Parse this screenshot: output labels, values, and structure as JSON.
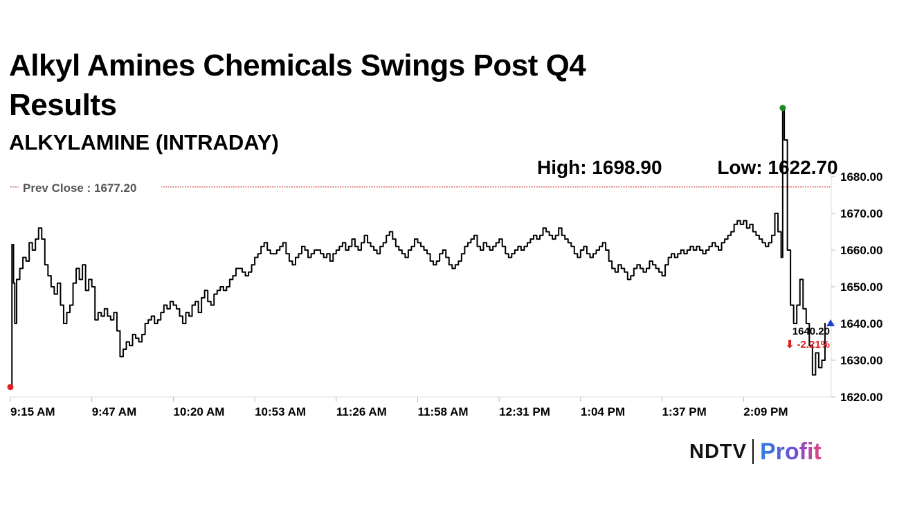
{
  "header": {
    "title": "Alkyl Amines Chemicals Swings Post Q4 Results",
    "subtitle": "ALKYLAMINE (INTRADAY)"
  },
  "stats": {
    "high": "High: 1698.90",
    "low": "Low: 1622.70"
  },
  "branding": {
    "ndtv": "NDTV",
    "profit": "Profit"
  },
  "chart_data": {
    "type": "line",
    "ylim": [
      1620,
      1680
    ],
    "yticks": [
      "1680.00",
      "1670.00",
      "1660.00",
      "1650.00",
      "1640.00",
      "1630.00",
      "1620.00"
    ],
    "x_tick_labels": [
      "9:15 AM",
      "9:47 AM",
      "10:20 AM",
      "10:53 AM",
      "11:26 AM",
      "11:58 AM",
      "12:31 PM",
      "1:04 PM",
      "1:37 PM",
      "2:09 PM"
    ],
    "prev_close": 1677.2,
    "prev_close_label": "Prev Close : 1677.20",
    "last_price": "1640.20",
    "change": "⬇ -2.21%",
    "colors": {
      "line": "#000000",
      "prev_close": "#cc2222",
      "high_marker": "#1f8a1f",
      "low_marker": "#e02020",
      "last_marker": "#1f3fd1",
      "change": "#e02020",
      "axis_text": "#000000",
      "prev_close_text": "#555555"
    },
    "series": [
      {
        "values": [
          [
            0,
            1622.7
          ],
          [
            0.5,
            1661.5
          ],
          [
            1,
            1651
          ],
          [
            1.4,
            1640
          ],
          [
            2,
            1652
          ],
          [
            3,
            1655
          ],
          [
            4,
            1658
          ],
          [
            5,
            1657
          ],
          [
            6,
            1662
          ],
          [
            7,
            1660
          ],
          [
            8,
            1663
          ],
          [
            9,
            1666
          ],
          [
            10,
            1663
          ],
          [
            11,
            1656
          ],
          [
            12,
            1653
          ],
          [
            13,
            1650
          ],
          [
            14,
            1648
          ],
          [
            15,
            1651
          ],
          [
            16,
            1645
          ],
          [
            17,
            1640
          ],
          [
            18,
            1643
          ],
          [
            19,
            1645
          ],
          [
            20,
            1651
          ],
          [
            21,
            1655
          ],
          [
            22,
            1652
          ],
          [
            23,
            1656
          ],
          [
            24,
            1649
          ],
          [
            25,
            1652
          ],
          [
            26,
            1650
          ],
          [
            27,
            1641
          ],
          [
            28,
            1643
          ],
          [
            29,
            1642
          ],
          [
            30,
            1644
          ],
          [
            31,
            1642
          ],
          [
            32,
            1641
          ],
          [
            33,
            1643
          ],
          [
            34,
            1638
          ],
          [
            35,
            1631
          ],
          [
            36,
            1633
          ],
          [
            37,
            1635
          ],
          [
            38,
            1634
          ],
          [
            39,
            1637
          ],
          [
            40,
            1636
          ],
          [
            41,
            1635
          ],
          [
            42,
            1637
          ],
          [
            43,
            1640
          ],
          [
            44,
            1641
          ],
          [
            45,
            1642
          ],
          [
            46,
            1640
          ],
          [
            47,
            1641
          ],
          [
            48,
            1643
          ],
          [
            49,
            1645
          ],
          [
            50,
            1644
          ],
          [
            51,
            1646
          ],
          [
            52,
            1645
          ],
          [
            53,
            1644
          ],
          [
            54,
            1642
          ],
          [
            55,
            1640
          ],
          [
            56,
            1643
          ],
          [
            57,
            1642
          ],
          [
            58,
            1645
          ],
          [
            59,
            1646
          ],
          [
            60,
            1643
          ],
          [
            61,
            1647
          ],
          [
            62,
            1649
          ],
          [
            63,
            1646
          ],
          [
            64,
            1645
          ],
          [
            65,
            1648
          ],
          [
            66,
            1649
          ],
          [
            67,
            1650
          ],
          [
            68,
            1649
          ],
          [
            69,
            1650
          ],
          [
            70,
            1652
          ],
          [
            71,
            1653
          ],
          [
            72,
            1655
          ],
          [
            73,
            1655
          ],
          [
            74,
            1654
          ],
          [
            75,
            1653
          ],
          [
            76,
            1654
          ],
          [
            77,
            1656
          ],
          [
            78,
            1658
          ],
          [
            79,
            1659
          ],
          [
            80,
            1661
          ],
          [
            81,
            1662
          ],
          [
            82,
            1660
          ],
          [
            83,
            1659
          ],
          [
            84,
            1659
          ],
          [
            85,
            1660
          ],
          [
            86,
            1661
          ],
          [
            87,
            1662
          ],
          [
            88,
            1659
          ],
          [
            89,
            1657
          ],
          [
            90,
            1656
          ],
          [
            91,
            1658
          ],
          [
            92,
            1659
          ],
          [
            93,
            1661
          ],
          [
            94,
            1660
          ],
          [
            95,
            1658
          ],
          [
            96,
            1659
          ],
          [
            97,
            1660
          ],
          [
            98,
            1660
          ],
          [
            99,
            1659
          ],
          [
            100,
            1658
          ],
          [
            101,
            1659
          ],
          [
            102,
            1657
          ],
          [
            103,
            1659
          ],
          [
            104,
            1660
          ],
          [
            105,
            1661
          ],
          [
            106,
            1662
          ],
          [
            107,
            1660
          ],
          [
            108,
            1661
          ],
          [
            109,
            1663
          ],
          [
            110,
            1661
          ],
          [
            111,
            1660
          ],
          [
            112,
            1662
          ],
          [
            113,
            1664
          ],
          [
            114,
            1662
          ],
          [
            115,
            1661
          ],
          [
            116,
            1660
          ],
          [
            117,
            1659
          ],
          [
            118,
            1661
          ],
          [
            119,
            1662
          ],
          [
            120,
            1664
          ],
          [
            121,
            1665
          ],
          [
            122,
            1663
          ],
          [
            123,
            1661
          ],
          [
            124,
            1660
          ],
          [
            125,
            1659
          ],
          [
            126,
            1658
          ],
          [
            127,
            1660
          ],
          [
            128,
            1661
          ],
          [
            129,
            1663
          ],
          [
            130,
            1662
          ],
          [
            131,
            1661
          ],
          [
            132,
            1660
          ],
          [
            133,
            1659
          ],
          [
            134,
            1657
          ],
          [
            135,
            1656
          ],
          [
            136,
            1657
          ],
          [
            137,
            1659
          ],
          [
            138,
            1660
          ],
          [
            139,
            1658
          ],
          [
            140,
            1656
          ],
          [
            141,
            1655
          ],
          [
            142,
            1656
          ],
          [
            143,
            1657
          ],
          [
            144,
            1659
          ],
          [
            145,
            1661
          ],
          [
            146,
            1662
          ],
          [
            147,
            1663
          ],
          [
            148,
            1664
          ],
          [
            149,
            1661
          ],
          [
            150,
            1660
          ],
          [
            151,
            1662
          ],
          [
            152,
            1661
          ],
          [
            153,
            1660
          ],
          [
            154,
            1661
          ],
          [
            155,
            1662
          ],
          [
            156,
            1663
          ],
          [
            157,
            1661
          ],
          [
            158,
            1659
          ],
          [
            159,
            1658
          ],
          [
            160,
            1659
          ],
          [
            161,
            1660
          ],
          [
            162,
            1661
          ],
          [
            163,
            1660
          ],
          [
            164,
            1661
          ],
          [
            165,
            1662
          ],
          [
            166,
            1663
          ],
          [
            167,
            1664
          ],
          [
            168,
            1663
          ],
          [
            169,
            1664
          ],
          [
            170,
            1666
          ],
          [
            171,
            1665
          ],
          [
            172,
            1664
          ],
          [
            173,
            1663
          ],
          [
            174,
            1664
          ],
          [
            175,
            1666
          ],
          [
            176,
            1664
          ],
          [
            177,
            1663
          ],
          [
            178,
            1662
          ],
          [
            179,
            1661
          ],
          [
            180,
            1659
          ],
          [
            181,
            1658
          ],
          [
            182,
            1660
          ],
          [
            183,
            1661
          ],
          [
            184,
            1659
          ],
          [
            185,
            1658
          ],
          [
            186,
            1659
          ],
          [
            187,
            1660
          ],
          [
            188,
            1661
          ],
          [
            189,
            1662
          ],
          [
            190,
            1660
          ],
          [
            191,
            1657
          ],
          [
            192,
            1655
          ],
          [
            193,
            1654
          ],
          [
            194,
            1656
          ],
          [
            195,
            1655
          ],
          [
            196,
            1654
          ],
          [
            197,
            1652
          ],
          [
            198,
            1653
          ],
          [
            199,
            1655
          ],
          [
            200,
            1656
          ],
          [
            201,
            1655
          ],
          [
            202,
            1654
          ],
          [
            203,
            1655
          ],
          [
            204,
            1657
          ],
          [
            205,
            1656
          ],
          [
            206,
            1655
          ],
          [
            207,
            1654
          ],
          [
            208,
            1653
          ],
          [
            209,
            1656
          ],
          [
            210,
            1658
          ],
          [
            211,
            1659
          ],
          [
            212,
            1658
          ],
          [
            213,
            1659
          ],
          [
            214,
            1660
          ],
          [
            215,
            1659
          ],
          [
            216,
            1660
          ],
          [
            217,
            1661
          ],
          [
            218,
            1660
          ],
          [
            219,
            1661
          ],
          [
            220,
            1660
          ],
          [
            221,
            1659
          ],
          [
            222,
            1660
          ],
          [
            223,
            1661
          ],
          [
            224,
            1662
          ],
          [
            225,
            1661
          ],
          [
            226,
            1660
          ],
          [
            227,
            1662
          ],
          [
            228,
            1663
          ],
          [
            229,
            1664
          ],
          [
            230,
            1665
          ],
          [
            231,
            1667
          ],
          [
            232,
            1668
          ],
          [
            233,
            1667
          ],
          [
            234,
            1668
          ],
          [
            235,
            1666
          ],
          [
            236,
            1667
          ],
          [
            237,
            1665
          ],
          [
            238,
            1664
          ],
          [
            239,
            1663
          ],
          [
            240,
            1662
          ],
          [
            241,
            1661
          ],
          [
            242,
            1662
          ],
          [
            243,
            1664
          ],
          [
            244,
            1670
          ],
          [
            245,
            1665
          ],
          [
            246,
            1658
          ],
          [
            246.5,
            1698.9
          ],
          [
            247,
            1690
          ],
          [
            248,
            1660
          ],
          [
            249,
            1645
          ],
          [
            250,
            1640
          ],
          [
            251,
            1645
          ],
          [
            252,
            1652
          ],
          [
            253,
            1644
          ],
          [
            254,
            1640
          ],
          [
            255,
            1634
          ],
          [
            256,
            1626
          ],
          [
            257,
            1632
          ],
          [
            258,
            1628
          ],
          [
            259,
            1630
          ],
          [
            260,
            1640.2
          ]
        ]
      }
    ],
    "x_tick_positions": [
      0,
      26,
      52,
      78,
      104,
      130,
      156,
      182,
      208,
      234
    ],
    "x_range": [
      0,
      262
    ]
  }
}
